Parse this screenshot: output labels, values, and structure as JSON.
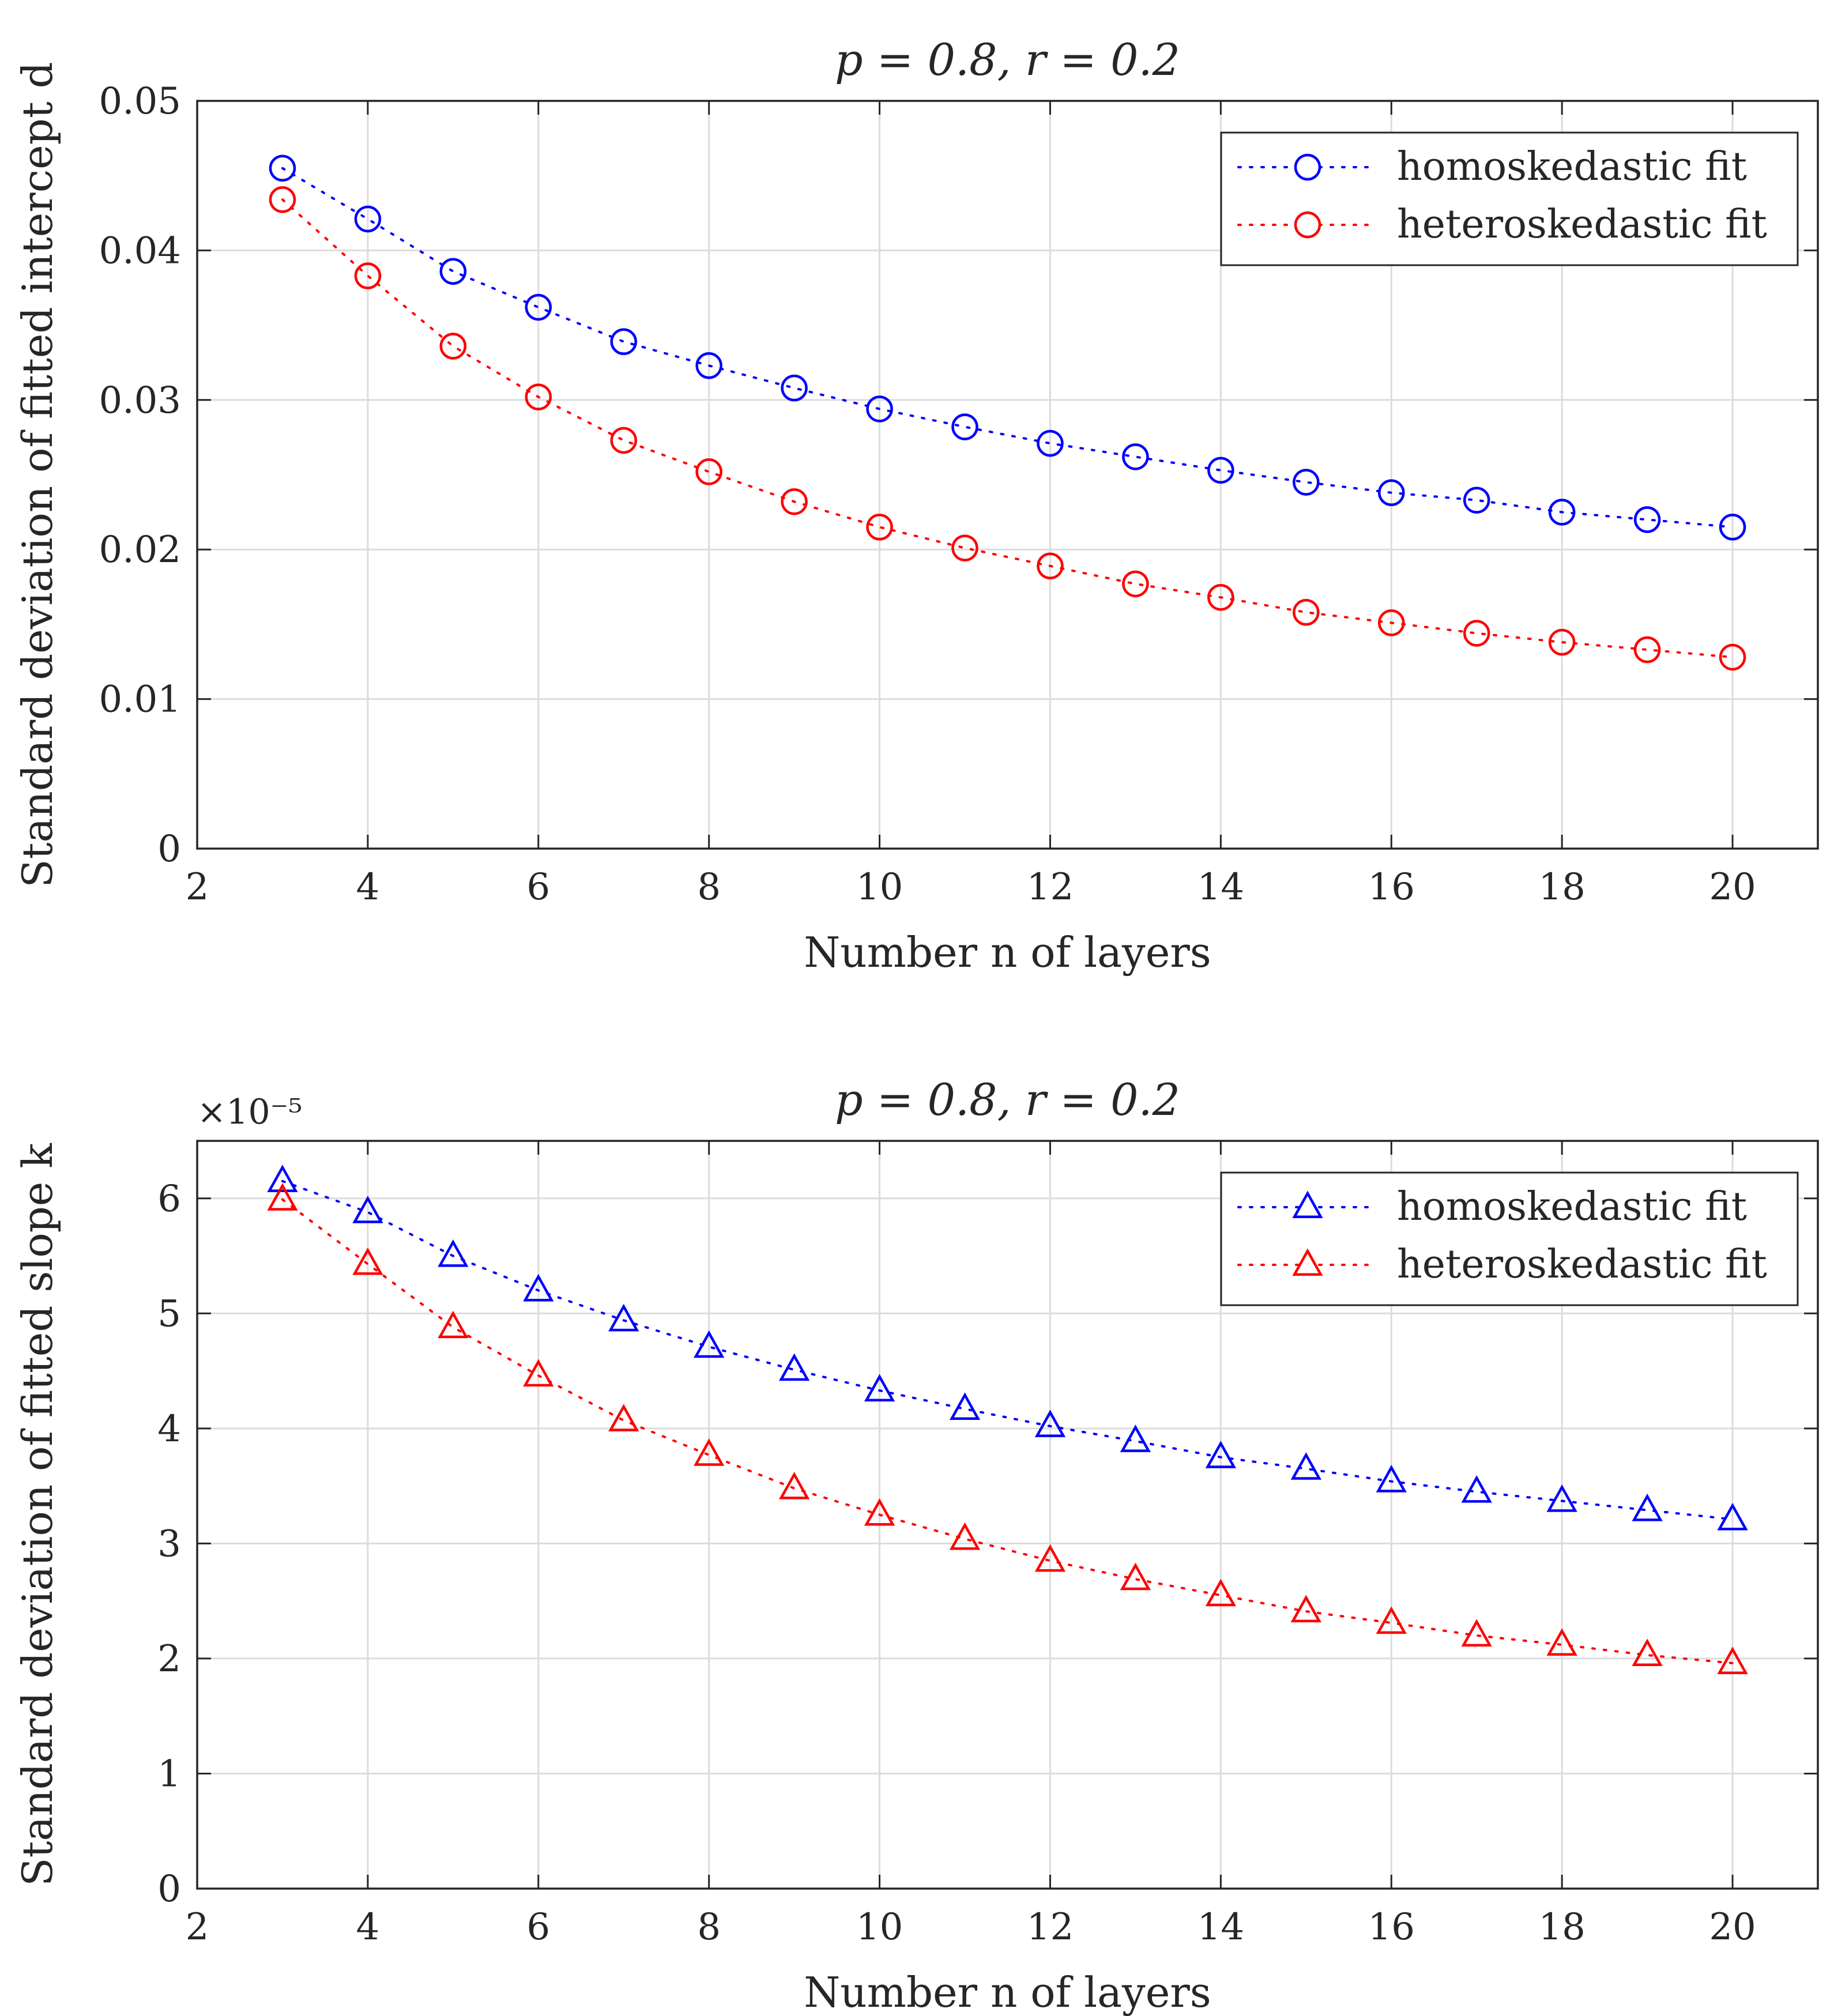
{
  "chart_data": [
    {
      "type": "line",
      "title": "p = 0.8, r = 0.2",
      "xlabel": "Number n of layers",
      "ylabel": "Standard deviation of fitted intercept d",
      "xlim": [
        2,
        21
      ],
      "ylim": [
        0,
        0.05
      ],
      "xticks": [
        "2",
        "4",
        "6",
        "8",
        "10",
        "12",
        "14",
        "16",
        "18",
        "20"
      ],
      "yticks": [
        "0",
        "0.01",
        "0.02",
        "0.03",
        "0.04",
        "0.05"
      ],
      "exponent_label": "",
      "grid": true,
      "legend_position": "top-right",
      "marker": "circle",
      "x": [
        3,
        4,
        5,
        6,
        7,
        8,
        9,
        10,
        11,
        12,
        13,
        14,
        15,
        16,
        17,
        18,
        19,
        20
      ],
      "series": [
        {
          "name": "homoskedastic fit",
          "color": "#0000ff",
          "values": [
            0.0455,
            0.0421,
            0.0386,
            0.0362,
            0.0339,
            0.0323,
            0.0308,
            0.0294,
            0.0282,
            0.0271,
            0.0262,
            0.0253,
            0.0245,
            0.0238,
            0.0233,
            0.0225,
            0.022,
            0.0215
          ]
        },
        {
          "name": "heteroskedastic fit",
          "color": "#ff0000",
          "values": [
            0.0434,
            0.0383,
            0.0336,
            0.0302,
            0.0273,
            0.0252,
            0.0232,
            0.0215,
            0.0201,
            0.0189,
            0.0177,
            0.0168,
            0.0158,
            0.0151,
            0.0144,
            0.0138,
            0.0133,
            0.0128
          ]
        }
      ]
    },
    {
      "type": "line",
      "title": "p = 0.8, r = 0.2",
      "xlabel": "Number n of layers",
      "ylabel": "Standard deviation of fitted slope k",
      "xlim": [
        2,
        21
      ],
      "ylim": [
        0,
        6.5
      ],
      "xticks": [
        "2",
        "4",
        "6",
        "8",
        "10",
        "12",
        "14",
        "16",
        "18",
        "20"
      ],
      "yticks": [
        "0",
        "1",
        "2",
        "3",
        "4",
        "5",
        "6"
      ],
      "exponent_label": "×10⁻⁵",
      "grid": true,
      "legend_position": "top-right",
      "marker": "triangle",
      "x": [
        3,
        4,
        5,
        6,
        7,
        8,
        9,
        10,
        11,
        12,
        13,
        14,
        15,
        16,
        17,
        18,
        19,
        20
      ],
      "series": [
        {
          "name": "homoskedastic fit",
          "color": "#0000ff",
          "values": [
            6.15,
            5.88,
            5.5,
            5.2,
            4.94,
            4.71,
            4.51,
            4.33,
            4.17,
            4.02,
            3.89,
            3.75,
            3.65,
            3.54,
            3.45,
            3.37,
            3.29,
            3.21
          ]
        },
        {
          "name": "heteroskedastic fit",
          "color": "#ff0000",
          "values": [
            5.99,
            5.43,
            4.88,
            4.46,
            4.07,
            3.77,
            3.48,
            3.25,
            3.04,
            2.85,
            2.69,
            2.55,
            2.41,
            2.31,
            2.2,
            2.12,
            2.03,
            1.96
          ]
        }
      ]
    }
  ]
}
